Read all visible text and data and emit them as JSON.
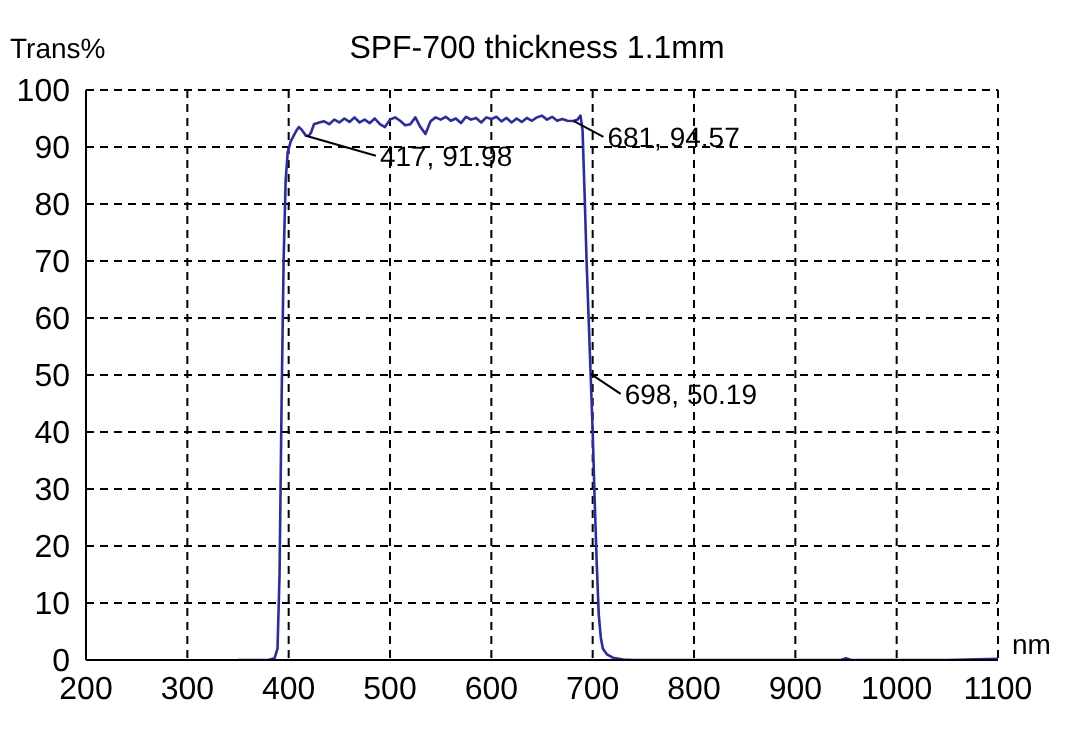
{
  "chart_data": {
    "type": "line",
    "title": "SPF-700  thickness 1.1mm",
    "xlabel": "nm",
    "ylabel": "Trans%",
    "xlim": [
      200,
      1100
    ],
    "xticks": [
      200,
      300,
      400,
      500,
      600,
      700,
      800,
      900,
      1000,
      1100
    ],
    "ylim": [
      0,
      100
    ],
    "yticks": [
      0,
      10,
      20,
      30,
      40,
      50,
      60,
      70,
      80,
      90,
      100
    ],
    "grid": true,
    "marker": "none",
    "line_style": "solid",
    "annotations": [
      {
        "text": "417, 91.98",
        "x": 417,
        "y": 91.98
      },
      {
        "text": "681, 94.57",
        "x": 681,
        "y": 94.57
      },
      {
        "text": "698, 50.19",
        "x": 698,
        "y": 50.19
      }
    ],
    "series": [
      {
        "color": "#2b2ba8",
        "x": [
          350,
          380,
          386,
          389,
          391,
          393,
          395,
          397,
          399,
          402,
          405,
          408,
          410,
          413,
          415,
          417,
          420,
          422,
          425,
          430,
          435,
          440,
          445,
          450,
          455,
          460,
          465,
          470,
          475,
          480,
          485,
          490,
          495,
          500,
          505,
          510,
          515,
          520,
          525,
          530,
          535,
          540,
          545,
          550,
          555,
          560,
          565,
          570,
          575,
          580,
          585,
          590,
          595,
          600,
          605,
          610,
          615,
          620,
          625,
          630,
          635,
          640,
          645,
          650,
          655,
          660,
          665,
          670,
          675,
          681,
          685,
          688,
          690,
          692,
          694,
          696,
          698,
          700,
          702,
          704,
          706,
          708,
          710,
          714,
          720,
          730,
          740,
          800,
          900,
          945,
          950,
          955,
          1000,
          1050,
          1100
        ],
        "values": [
          0,
          0,
          0.3,
          2,
          15,
          45,
          70,
          84,
          89,
          91,
          92,
          93,
          93.5,
          93,
          92.5,
          91.98,
          92,
          92.5,
          94,
          94.3,
          94.5,
          94,
          94.8,
          94.3,
          95,
          94.4,
          95.2,
          94.3,
          94.8,
          94.2,
          95,
          94,
          93.5,
          94.8,
          95.2,
          94.6,
          93.8,
          94,
          95.2,
          93.5,
          92.3,
          94.5,
          95.2,
          94.8,
          95.3,
          94.6,
          95,
          94.2,
          95.3,
          94.8,
          95.1,
          94.3,
          95.2,
          94.9,
          95.3,
          94.5,
          95.1,
          94.3,
          95,
          94.4,
          95.1,
          94.6,
          95.2,
          95.5,
          94.8,
          95.3,
          94.6,
          94.9,
          94.6,
          94.57,
          94.8,
          95.5,
          93,
          82,
          70,
          60,
          50.19,
          40,
          28,
          17,
          8,
          4,
          2,
          1,
          0.4,
          0.1,
          0,
          0,
          0,
          0,
          0.3,
          0,
          0,
          0,
          0.2
        ]
      }
    ]
  }
}
